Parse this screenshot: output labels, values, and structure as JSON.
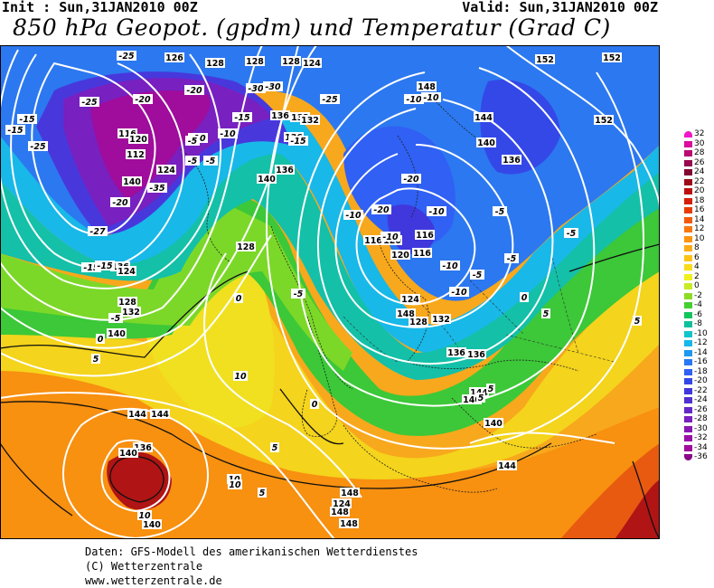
{
  "header": {
    "init": "Init : Sun,31JAN2010 00Z",
    "valid": "Valid: Sun,31JAN2010 00Z",
    "title": "850 hPa Geopot. (gpdm) und Temperatur (Grad C)"
  },
  "legend": {
    "entries": [
      {
        "value": "32",
        "color": "#f018c8"
      },
      {
        "value": "30",
        "color": "#d8109c"
      },
      {
        "value": "28",
        "color": "#b80c74"
      },
      {
        "value": "26",
        "color": "#98084c"
      },
      {
        "value": "24",
        "color": "#800830"
      },
      {
        "value": "22",
        "color": "#9c0c18"
      },
      {
        "value": "20",
        "color": "#bc1010"
      },
      {
        "value": "18",
        "color": "#d42008"
      },
      {
        "value": "16",
        "color": "#e83c08"
      },
      {
        "value": "14",
        "color": "#f45a0c"
      },
      {
        "value": "12",
        "color": "#f87810"
      },
      {
        "value": "10",
        "color": "#fc9410"
      },
      {
        "value": "8",
        "color": "#fcac14"
      },
      {
        "value": "6",
        "color": "#fcc418"
      },
      {
        "value": "4",
        "color": "#f8dc1c"
      },
      {
        "value": "2",
        "color": "#f0f020"
      },
      {
        "value": "0",
        "color": "#c8ec24"
      },
      {
        "value": "-2",
        "color": "#8cdc24"
      },
      {
        "value": "-4",
        "color": "#44d030"
      },
      {
        "value": "-6",
        "color": "#14c45c"
      },
      {
        "value": "-8",
        "color": "#10c09c"
      },
      {
        "value": "-10",
        "color": "#14c4cc"
      },
      {
        "value": "-12",
        "color": "#18b8e8"
      },
      {
        "value": "-14",
        "color": "#2098f0"
      },
      {
        "value": "-16",
        "color": "#2878f4"
      },
      {
        "value": "-18",
        "color": "#3060f4"
      },
      {
        "value": "-20",
        "color": "#3448e8"
      },
      {
        "value": "-22",
        "color": "#4038dc"
      },
      {
        "value": "-24",
        "color": "#5030d0"
      },
      {
        "value": "-26",
        "color": "#6428c8"
      },
      {
        "value": "-28",
        "color": "#7820c0"
      },
      {
        "value": "-30",
        "color": "#8818b4"
      },
      {
        "value": "-32",
        "color": "#9810a8"
      },
      {
        "value": "-34",
        "color": "#a00c9c"
      },
      {
        "value": "-36",
        "color": "#880888"
      }
    ]
  },
  "map": {
    "geopotential_labels": [
      "126",
      "128",
      "128",
      "128",
      "124",
      "152",
      "152",
      "148",
      "136",
      "136",
      "136",
      "132",
      "132",
      "144",
      "140",
      "136",
      "140",
      "116",
      "112",
      "120",
      "124",
      "140",
      "136",
      "140",
      "116",
      "120",
      "116",
      "116",
      "120",
      "124",
      "128",
      "132",
      "136",
      "144",
      "148",
      "140",
      "144",
      "124",
      "128",
      "128",
      "124",
      "132",
      "136",
      "140",
      "144",
      "144",
      "148",
      "148",
      "148",
      "140",
      "136",
      "140",
      "152"
    ],
    "temperature_labels": [
      "-25",
      "-20",
      "-25",
      "-20",
      "-15",
      "-15",
      "-25",
      "-35",
      "-30",
      "-30",
      "-25",
      "-20",
      "-15",
      "-10",
      "-10",
      "-15",
      "-15",
      "-10",
      "-10",
      "-5",
      "-5",
      "-5",
      "-20",
      "-20",
      "-27",
      "-15",
      "-10",
      "-5",
      "-10",
      "-5",
      "-10",
      "-5",
      "0",
      "-5",
      "0",
      "0",
      "5",
      "10",
      "10",
      "10",
      "10",
      "5",
      "5",
      "5",
      "5",
      "0",
      "5",
      "5",
      "-10",
      "-10",
      "-5",
      "-5"
    ]
  },
  "footer": {
    "line1": "Daten: GFS-Modell des amerikanischen Wetterdienstes",
    "line2": "(C) Wetterzentrale",
    "line3": "www.wetterzentrale.de"
  }
}
